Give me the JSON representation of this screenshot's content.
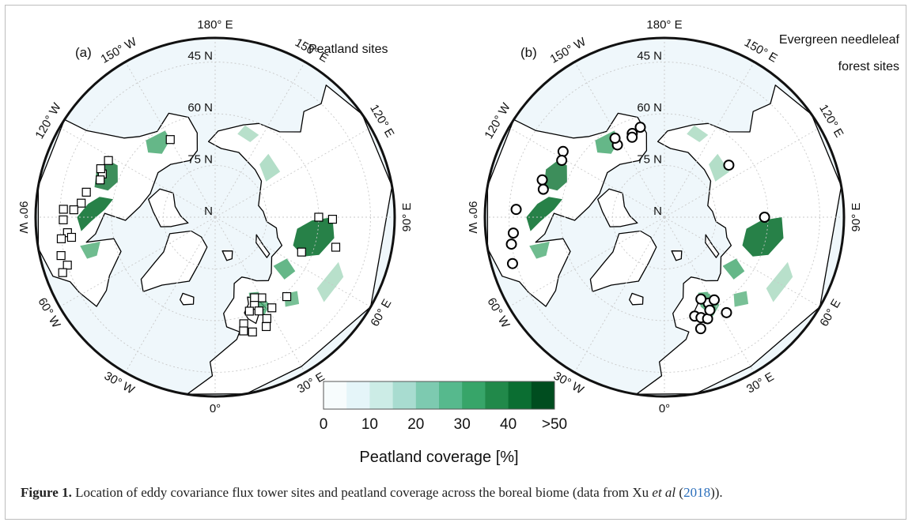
{
  "colors": {
    "ocean": "#eff7fb",
    "coast": "#000000",
    "grid": "#c8c8c8",
    "peat_dark": "#1b7a3e",
    "peat_mid": "#3fa56a",
    "peat_light": "#9ad3b5"
  },
  "panel_a": {
    "label": "(a)",
    "title_line1": "Peatland sites",
    "marker": "square",
    "lat_labels": [
      "45 N",
      "60 N",
      "75 N",
      "N"
    ],
    "lon_labels": [
      "180° E",
      "150° E",
      "120° E",
      "90° E",
      "60° E",
      "30° E",
      "0°",
      "30° W",
      "60° W",
      "90° W",
      "120° W",
      "150° W"
    ],
    "sites": [
      {
        "lat": 64,
        "lon": -150
      },
      {
        "lat": 55,
        "lon": -111
      },
      {
        "lat": 55,
        "lon": -108
      },
      {
        "lat": 54,
        "lon": -113
      },
      {
        "lat": 55,
        "lon": -118
      },
      {
        "lat": 52,
        "lon": -101
      },
      {
        "lat": 51,
        "lon": -96
      },
      {
        "lat": 49,
        "lon": -93
      },
      {
        "lat": 46,
        "lon": -89
      },
      {
        "lat": 46,
        "lon": -93
      },
      {
        "lat": 47,
        "lon": -84
      },
      {
        "lat": 45,
        "lon": -82
      },
      {
        "lat": 48,
        "lon": -82
      },
      {
        "lat": 44,
        "lon": -76
      },
      {
        "lat": 45,
        "lon": -72
      },
      {
        "lat": 43,
        "lon": -70
      },
      {
        "lat": 60,
        "lon": 90
      },
      {
        "lat": 56,
        "lon": 89
      },
      {
        "lat": 54,
        "lon": 76
      },
      {
        "lat": 63,
        "lon": 68
      },
      {
        "lat": 59,
        "lon": 42
      },
      {
        "lat": 63,
        "lon": 30
      },
      {
        "lat": 64,
        "lon": 26
      },
      {
        "lat": 62,
        "lon": 24
      },
      {
        "lat": 60,
        "lon": 25
      },
      {
        "lat": 61,
        "lon": 20
      },
      {
        "lat": 58,
        "lon": 15
      },
      {
        "lat": 56,
        "lon": 14
      },
      {
        "lat": 55,
        "lon": 18
      },
      {
        "lat": 57,
        "lon": 27
      },
      {
        "lat": 59,
        "lon": 32
      },
      {
        "lat": 55,
        "lon": 25
      }
    ]
  },
  "panel_b": {
    "label": "(b)",
    "title_line1": "Evergreen needleleaf",
    "title_line2": "forest sites",
    "marker": "circle",
    "lat_labels": [
      "45 N",
      "60 N",
      "75 N",
      "N"
    ],
    "lon_labels": [
      "180° E",
      "150° E",
      "120° E",
      "90° E",
      "60° E",
      "30° E",
      "0°",
      "30° W",
      "60° W",
      "90° W",
      "120° W",
      "150° W"
    ],
    "sites": [
      {
        "lat": 65,
        "lon": -147
      },
      {
        "lat": 64,
        "lon": -159
      },
      {
        "lat": 65,
        "lon": -158
      },
      {
        "lat": 63,
        "lon": -165
      },
      {
        "lat": 55,
        "lon": -123
      },
      {
        "lat": 56,
        "lon": -119
      },
      {
        "lat": 63,
        "lon": -148
      },
      {
        "lat": 53,
        "lon": -107
      },
      {
        "lat": 54,
        "lon": -103
      },
      {
        "lat": 47,
        "lon": -93
      },
      {
        "lat": 45,
        "lon": -80
      },
      {
        "lat": 46,
        "lon": -84
      },
      {
        "lat": 44,
        "lon": -73
      },
      {
        "lat": 66,
        "lon": 129
      },
      {
        "lat": 61,
        "lon": 90
      },
      {
        "lat": 62,
        "lon": 27
      },
      {
        "lat": 64,
        "lon": 24
      },
      {
        "lat": 60,
        "lon": 17
      },
      {
        "lat": 56,
        "lon": 18
      },
      {
        "lat": 59,
        "lon": 20
      },
      {
        "lat": 58,
        "lon": 23
      },
      {
        "lat": 57,
        "lon": 33
      },
      {
        "lat": 62,
        "lon": 31
      },
      {
        "lat": 60,
        "lon": 26
      }
    ]
  },
  "colorbar": {
    "colors": [
      "#f7fcfd",
      "#e5f5f9",
      "#ccece6",
      "#a8dcd0",
      "#7dcab0",
      "#56b98d",
      "#37a569",
      "#21894a",
      "#0b6e32",
      "#004d1f"
    ],
    "tick_labels": [
      "0",
      "10",
      "20",
      "30",
      "40",
      ">50"
    ],
    "label": "Peatland coverage [%]"
  },
  "caption": {
    "label": "Figure 1.",
    "text_before": " Location of eddy covariance flux tower sites and peatland coverage across the boreal biome (data from Xu ",
    "italic": "et al",
    "text_open": " (",
    "ref": "2018",
    "text_close": "))."
  }
}
